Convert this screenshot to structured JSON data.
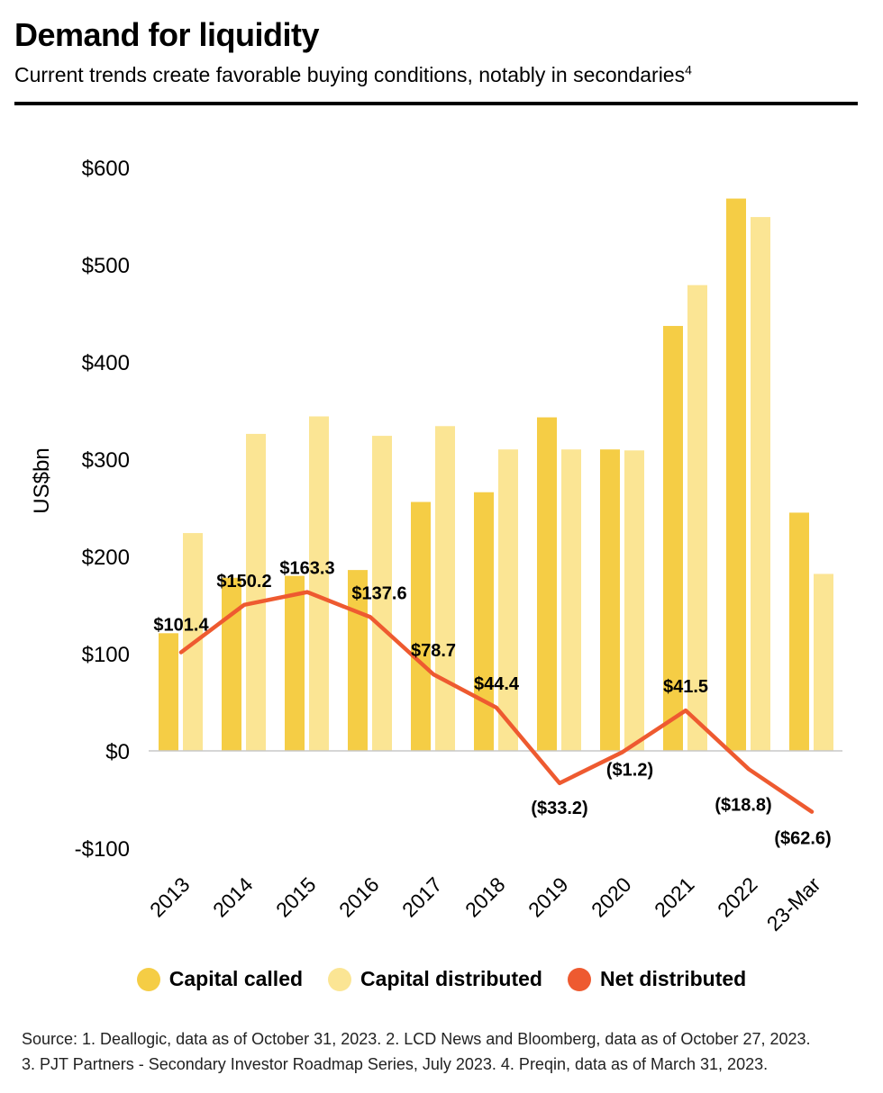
{
  "header": {
    "title": "Demand for liquidity",
    "subtitle": "Current trends create favorable buying conditions, notably in secondaries",
    "subtitle_sup": "4"
  },
  "colors": {
    "capital_called": "#f5cd45",
    "capital_distributed": "#fbe594",
    "net_distributed": "#ee5a30"
  },
  "chart_data": {
    "type": "bar",
    "title": "",
    "xlabel": "",
    "ylabel": "US$bn",
    "ylim": [
      -100,
      600
    ],
    "yticks": [
      600,
      500,
      400,
      300,
      200,
      100,
      0,
      -100
    ],
    "ytick_labels": [
      "$600",
      "$500",
      "$400",
      "$300",
      "$200",
      "$100",
      "$0",
      "-$100"
    ],
    "categories": [
      "2013",
      "2014",
      "2015",
      "2016",
      "2017",
      "2018",
      "2019",
      "2020",
      "2021",
      "2022",
      "23-Mar"
    ],
    "series": [
      {
        "name": "Capital called",
        "type": "bar",
        "values": [
          121,
          178,
          180,
          186,
          256,
          266,
          343,
          310,
          437,
          568,
          245
        ]
      },
      {
        "name": "Capital distributed",
        "type": "bar",
        "values": [
          224,
          326,
          344,
          324,
          334,
          310,
          310,
          309,
          479,
          549,
          182
        ]
      },
      {
        "name": "Net distributed",
        "type": "line",
        "values": [
          101.4,
          150.2,
          163.3,
          137.6,
          78.7,
          44.4,
          -33.2,
          -1.2,
          41.5,
          -18.8,
          -62.6
        ],
        "labels": [
          "$101.4",
          "$150.2",
          "$163.3",
          "$137.6",
          "$78.7",
          "$44.4",
          "($33.2)",
          "($1.2)",
          "$41.5",
          "($18.8)",
          "($62.6)"
        ]
      }
    ],
    "legend_position": "bottom",
    "grid": false
  },
  "legend": {
    "items": [
      "Capital called",
      "Capital distributed",
      "Net distributed"
    ]
  },
  "source": {
    "line1": "Source: 1. Deallogic, data as of October 31, 2023. 2. LCD News and Bloomberg, data as of October 27, 2023.",
    "line2": "3. PJT Partners - Secondary Investor Roadmap Series, July 2023. 4. Preqin, data as of March 31, 2023."
  }
}
